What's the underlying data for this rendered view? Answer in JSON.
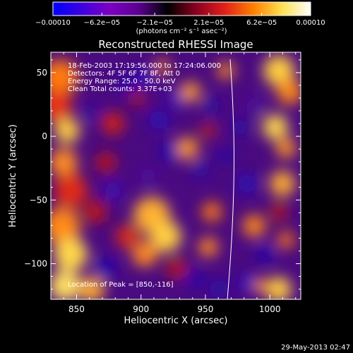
{
  "chart_data": {
    "type": "heatmap",
    "title": "Reconstructed RHESSI Image",
    "xlabel": "Heliocentric X (arcsec)",
    "ylabel": "Heliocentric Y (arcsec)",
    "xlim": [
      830,
      1024
    ],
    "ylim": [
      -128,
      66
    ],
    "xticks": [
      850,
      900,
      950,
      1000
    ],
    "xtick_labels": [
      "850",
      "900",
      "950",
      "1000"
    ],
    "yticks": [
      -100,
      -50,
      0,
      50
    ],
    "ytick_labels": [
      "−100",
      "−50",
      "0",
      "50"
    ],
    "colorbar": {
      "range": [
        -0.0001,
        0.0001
      ],
      "ticks": [
        -0.0001,
        -6.2e-05,
        -2.1e-05,
        2.1e-05,
        6.2e-05,
        0.0001
      ],
      "tick_labels": [
        "−0.00010",
        "−6.2e−05",
        "−2.1e−05",
        "2.1e−05",
        "6.2e−05",
        "0.00010"
      ],
      "unit_label": "(photons cm⁻² s⁻¹ asec⁻²)",
      "colormap": [
        "#0000ff",
        "#3d00e0",
        "#7e00c2",
        "#5a0090",
        "#000000",
        "#8a0020",
        "#e0201a",
        "#ff8000",
        "#ffe050",
        "#ffffff"
      ]
    },
    "info_lines": [
      "18-Feb-2003 17:19:56.000 to 17:24:06.000",
      "Detectors: 4F 5F 6F 7F 8F, Att 0",
      "Energy Range: 25.0 - 50.0 keV",
      "Clean     Total counts: 3.37E+03"
    ],
    "peak_label": "Location of Peak = [850,-116]",
    "peak": [
      850,
      -116
    ],
    "footer_date": "29-May-2013 02:47",
    "limb_color": "#ffffff"
  }
}
